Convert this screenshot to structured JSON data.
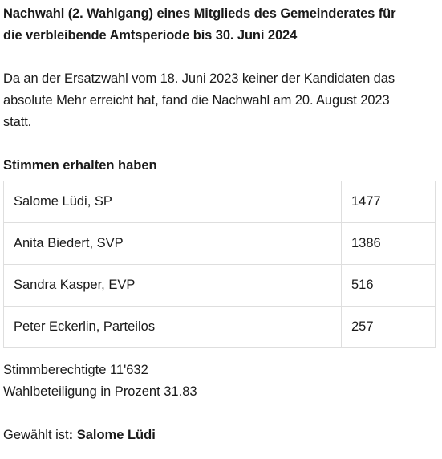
{
  "heading": {
    "line1": "Nachwahl (2. Wahlgang) eines Mitglieds des Gemeinderates für",
    "line2": "die verbleibende Amtsperiode bis 30. Juni 2024"
  },
  "intro": {
    "line1": "Da an der Ersatzwahl vom 18. Juni 2023 keiner der Kandidaten das",
    "line2": "absolute Mehr erreicht hat, fand die Nachwahl am 20. August 2023",
    "line3": "statt."
  },
  "results": {
    "title": "Stimmen erhalten haben",
    "rows": [
      {
        "name": "Salome Lüdi, SP",
        "votes": "1477"
      },
      {
        "name": "Anita Biedert, SVP",
        "votes": "1386"
      },
      {
        "name": "Sandra Kasper, EVP",
        "votes": "516"
      },
      {
        "name": "Peter Eckerlin, Parteilos",
        "votes": "257"
      }
    ]
  },
  "stats": {
    "eligible": "Stimmberechtigte 11'632",
    "turnout": "Wahlbeteiligung in Prozent 31.83"
  },
  "elected": {
    "label": "Gewählt ist",
    "name": ": Salome Lüdi"
  }
}
